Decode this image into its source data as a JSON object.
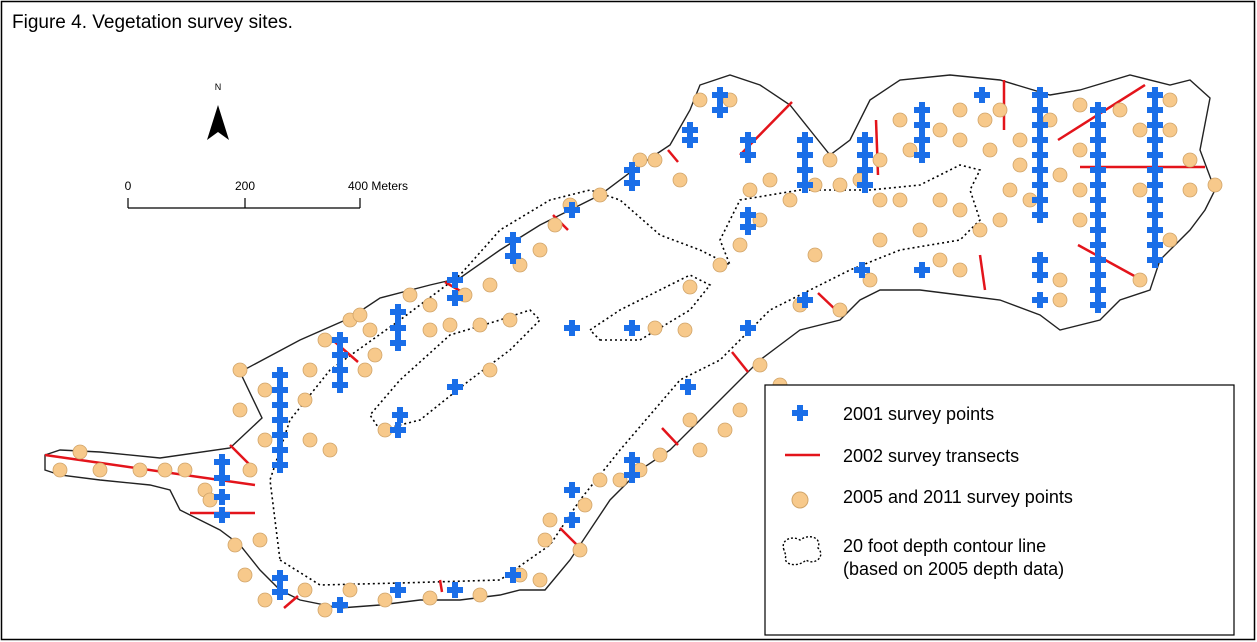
{
  "figure": {
    "title": "Figure 4. Vegetation survey sites."
  },
  "map": {
    "north_label": "N",
    "scale_bar": {
      "labels": [
        "0",
        "200",
        "400 Meters"
      ]
    }
  },
  "legend": {
    "items": [
      {
        "label": "2001 survey points"
      },
      {
        "label": "2002 survey transects"
      },
      {
        "label": "2005 and 2011 survey points"
      },
      {
        "lines": [
          "20 foot depth contour line",
          "(based on 2005 depth data)"
        ]
      }
    ]
  }
}
